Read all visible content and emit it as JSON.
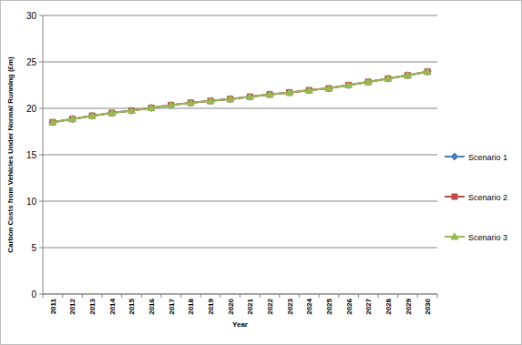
{
  "chart_data": {
    "type": "line",
    "y_label": "Carbon Costs from Vehicles Under Normal Running (£m)",
    "x_label": "Year",
    "categories": [
      "2011",
      "2012",
      "2013",
      "2014",
      "2015",
      "2016",
      "2017",
      "2018",
      "2019",
      "2020",
      "2021",
      "2022",
      "2023",
      "2024",
      "2025",
      "2026",
      "2027",
      "2028",
      "2029",
      "2030"
    ],
    "series": [
      {
        "name": "Scenario 1",
        "color": "#4a7ebb",
        "marker": "diamond",
        "values": [
          18.5,
          18.85,
          19.2,
          19.5,
          19.75,
          20.05,
          20.35,
          20.6,
          20.8,
          21.0,
          21.25,
          21.5,
          21.7,
          21.95,
          22.15,
          22.5,
          22.85,
          23.2,
          23.55,
          23.95
        ]
      },
      {
        "name": "Scenario 2",
        "color": "#be4b48",
        "marker": "square",
        "values": [
          18.5,
          18.85,
          19.2,
          19.5,
          19.75,
          20.05,
          20.35,
          20.6,
          20.8,
          21.0,
          21.25,
          21.5,
          21.7,
          21.95,
          22.15,
          22.5,
          22.85,
          23.2,
          23.55,
          23.95
        ]
      },
      {
        "name": "Scenario 3",
        "color": "#98b954",
        "marker": "triangle",
        "values": [
          18.5,
          18.85,
          19.2,
          19.5,
          19.75,
          20.05,
          20.35,
          20.6,
          20.8,
          21.0,
          21.25,
          21.5,
          21.7,
          21.95,
          22.15,
          22.5,
          22.85,
          23.2,
          23.55,
          23.95
        ]
      }
    ],
    "ylim": [
      0,
      30
    ],
    "yticks": [
      0,
      5,
      10,
      15,
      20,
      25,
      30
    ],
    "grid": true,
    "legend": "right"
  }
}
